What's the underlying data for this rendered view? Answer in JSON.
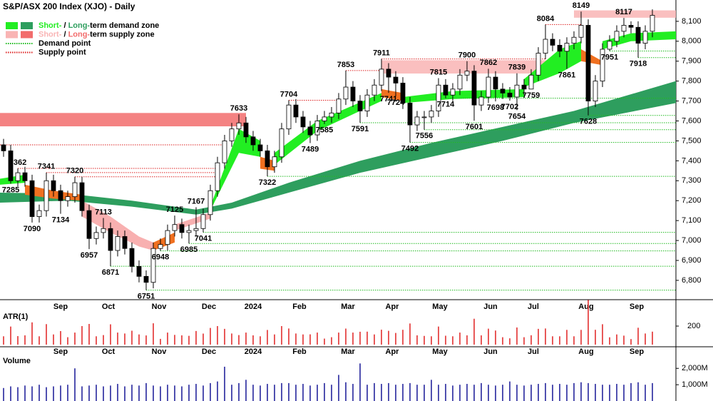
{
  "chart_data": {
    "type": "candlestick",
    "title": "S&P/ASX 200 Index (XJO) - Daily",
    "legend": [
      {
        "short": "Short-",
        "sep": " / ",
        "long": "Long-",
        "text": "term demand zone",
        "short_color": "#22ee22",
        "long_color": "#2e9e5e"
      },
      {
        "short": "Short-",
        "sep": " / ",
        "long": "Long-",
        "text": "term supply zone",
        "short_color": "#f9b4b4",
        "long_color": "#f26c6c"
      },
      {
        "text": "Demand point",
        "color": "#22bb22"
      },
      {
        "text": "Supply point",
        "color": "#dd2222"
      }
    ],
    "xlim": [
      -0.5,
      94.3
    ],
    "xticks": [
      {
        "value": 8,
        "label": "Sep"
      },
      {
        "value": 14.7,
        "label": "Oct"
      },
      {
        "value": 21.8,
        "label": "Nov"
      },
      {
        "value": 28.8,
        "label": "Dec"
      },
      {
        "value": 35,
        "label": "2024"
      },
      {
        "value": 41.5,
        "label": "Feb"
      },
      {
        "value": 48.3,
        "label": "Mar"
      },
      {
        "value": 54.5,
        "label": "Apr"
      },
      {
        "value": 61.2,
        "label": "May"
      },
      {
        "value": 68.3,
        "label": "Jun"
      },
      {
        "value": 74.3,
        "label": "Jul"
      },
      {
        "value": 81.7,
        "label": "Aug"
      },
      {
        "value": 88.8,
        "label": "Sep"
      }
    ],
    "ylim": [
      6703,
      8207
    ],
    "yticks": [
      {
        "value": 6800,
        "label": "6,800"
      },
      {
        "value": 6900,
        "label": "6,900"
      },
      {
        "value": 7000,
        "label": "7,000"
      },
      {
        "value": 7100,
        "label": "7,100"
      },
      {
        "value": 7200,
        "label": "7,200"
      },
      {
        "value": 7300,
        "label": "7,300"
      },
      {
        "value": 7400,
        "label": "7,400"
      },
      {
        "value": 7500,
        "label": "7,500"
      },
      {
        "value": 7600,
        "label": "7,600"
      },
      {
        "value": 7700,
        "label": "7,700"
      },
      {
        "value": 7800,
        "label": "7,800"
      },
      {
        "value": 7900,
        "label": "7,900"
      },
      {
        "value": 8000,
        "label": "8,000"
      },
      {
        "value": 8100,
        "label": "8,100"
      }
    ],
    "open": [
      7480,
      7450,
      7300,
      7340,
      7300,
      7120,
      7150,
      7300,
      7250,
      7200,
      7220,
      7290,
      7150,
      7010,
      7040,
      7060,
      6950,
      7020,
      6960,
      6870,
      6820,
      6790,
      6960,
      6980,
      7050,
      7080,
      7040,
      7050,
      7060,
      7130,
      7250,
      7390,
      7500,
      7560,
      7590,
      7520,
      7480,
      7450,
      7370,
      7420,
      7560,
      7680,
      7620,
      7570,
      7530,
      7600,
      7620,
      7640,
      7710,
      7770,
      7700,
      7650,
      7730,
      7780,
      7860,
      7820,
      7790,
      7690,
      7580,
      7620,
      7620,
      7650,
      7780,
      7730,
      7760,
      7830,
      7850,
      7680,
      7720,
      7820,
      7760,
      7740,
      7720,
      7780,
      7760,
      7830,
      7940,
      8010,
      7980,
      7950,
      7990,
      8020,
      8080,
      7700,
      7800,
      7960,
      8000,
      8050,
      8080,
      8070,
      7990,
      8050
    ],
    "high": [
      7510,
      7480,
      7362,
      7370,
      7330,
      7180,
      7341,
      7330,
      7280,
      7250,
      7320,
      7320,
      7180,
      7070,
      7113,
      7090,
      7050,
      7050,
      6990,
      6900,
      6850,
      6990,
      7010,
      7080,
      7125,
      7110,
      7080,
      7167,
      7160,
      7280,
      7420,
      7530,
      7590,
      7633,
      7620,
      7550,
      7510,
      7480,
      7450,
      7590,
      7704,
      7710,
      7650,
      7600,
      7630,
      7650,
      7670,
      7740,
      7853,
      7800,
      7730,
      7760,
      7810,
      7911,
      7890,
      7850,
      7820,
      7720,
      7650,
      7650,
      7680,
      7815,
      7810,
      7790,
      7860,
      7900,
      7880,
      7750,
      7862,
      7850,
      7790,
      7770,
      7839,
      7810,
      7860,
      7970,
      8084,
      8040,
      8010,
      8020,
      8050,
      8149,
      8110,
      7830,
      7990,
      8030,
      8080,
      8117,
      8100,
      8100,
      8080,
      8160
    ],
    "low": [
      7420,
      7285,
      7270,
      7270,
      7090,
      7090,
      7120,
      7220,
      7134,
      7170,
      7190,
      7120,
      6957,
      6980,
      7010,
      6871,
      6920,
      6930,
      6840,
      6790,
      6751,
      6760,
      6948,
      6950,
      7020,
      7010,
      6985,
      7020,
      7041,
      7100,
      7220,
      7360,
      7470,
      7530,
      7490,
      7450,
      7420,
      7322,
      7340,
      7390,
      7530,
      7590,
      7540,
      7489,
      7500,
      7585,
      7590,
      7610,
      7680,
      7670,
      7591,
      7620,
      7700,
      7750,
      7741,
      7724,
      7660,
      7492,
      7550,
      7556,
      7590,
      7620,
      7714,
      7700,
      7730,
      7800,
      7601,
      7650,
      7690,
      7698,
      7710,
      7702,
      7654,
      7730,
      7759,
      7800,
      7910,
      7950,
      7920,
      7861,
      7960,
      7990,
      7628,
      7670,
      7770,
      7951,
      7970,
      8020,
      8040,
      7918,
      7960,
      8020
    ],
    "close": [
      7450,
      7300,
      7340,
      7300,
      7120,
      7150,
      7300,
      7250,
      7200,
      7220,
      7290,
      7150,
      7010,
      7040,
      7060,
      6950,
      7020,
      6960,
      6870,
      6820,
      6790,
      6960,
      6980,
      7050,
      7080,
      7040,
      7050,
      7060,
      7130,
      7250,
      7390,
      7500,
      7560,
      7590,
      7520,
      7480,
      7450,
      7370,
      7420,
      7560,
      7680,
      7620,
      7570,
      7530,
      7600,
      7620,
      7640,
      7710,
      7770,
      7700,
      7650,
      7730,
      7780,
      7860,
      7820,
      7790,
      7690,
      7580,
      7620,
      7620,
      7650,
      7780,
      7730,
      7760,
      7830,
      7850,
      7680,
      7720,
      7820,
      7760,
      7740,
      7720,
      7780,
      7760,
      7830,
      7940,
      8010,
      7980,
      7950,
      7990,
      8020,
      8080,
      7700,
      7800,
      7960,
      8000,
      8050,
      8080,
      8070,
      7990,
      8050,
      8130
    ],
    "up_color": "#ffffff",
    "down_color": "#000000",
    "high_labels": [
      2,
      6,
      10,
      14,
      24,
      27,
      33,
      40,
      48,
      53,
      61,
      65,
      68,
      72,
      76,
      81,
      87
    ],
    "low_labels": [
      1,
      4,
      8,
      12,
      15,
      20,
      22,
      26,
      28,
      37,
      43,
      45,
      50,
      54,
      55,
      57,
      59,
      62,
      66,
      69,
      71,
      72,
      74,
      79,
      82,
      85,
      89
    ],
    "supply_zones": [
      {
        "from": -0.5,
        "to": 34,
        "low": 7573,
        "high": 7640,
        "color": "#f26c6c"
      },
      {
        "from": 53,
        "to": 77,
        "low": 7838,
        "high": 7905,
        "color": "#f9b4b4"
      },
      {
        "from": 80,
        "to": 94.3,
        "low": 8118,
        "high": 8155,
        "color": "#f9b4b4"
      }
    ],
    "long_band": {
      "color": "#2e9e5e",
      "x": [
        -0.5,
        9,
        18,
        27,
        32,
        40,
        50,
        60,
        70,
        80,
        94.3
      ],
      "lower": [
        7190,
        7200,
        7170,
        7130,
        7160,
        7240,
        7340,
        7420,
        7500,
        7590,
        7690
      ],
      "upper": [
        7240,
        7235,
        7200,
        7155,
        7190,
        7290,
        7400,
        7490,
        7570,
        7650,
        7800
      ]
    },
    "short_band": [
      {
        "color": "#22ee22",
        "x": [
          -0.5,
          3
        ],
        "lower": [
          7280,
          7290
        ],
        "upper": [
          7310,
          7330
        ]
      },
      {
        "color": "#f07020",
        "x": [
          3,
          7,
          11
        ],
        "lower": [
          7230,
          7210,
          7200
        ],
        "upper": [
          7280,
          7250,
          7230
        ]
      },
      {
        "color": "#f8b0b0",
        "x": [
          11,
          15,
          19,
          21
        ],
        "lower": [
          7120,
          7040,
          6970,
          6950
        ],
        "upper": [
          7200,
          7120,
          7020,
          6990
        ]
      },
      {
        "color": "#f07020",
        "x": [
          21,
          24
        ],
        "lower": [
          6950,
          6990
        ],
        "upper": [
          6990,
          7040
        ]
      },
      {
        "color": "#f8b0b0",
        "x": [
          24,
          29
        ],
        "lower": [
          7050,
          7110
        ],
        "upper": [
          7080,
          7140
        ]
      },
      {
        "color": "#22ee22",
        "x": [
          29,
          33,
          36
        ],
        "lower": [
          7150,
          7440,
          7420
        ],
        "upper": [
          7170,
          7560,
          7500
        ]
      },
      {
        "color": "#f07020",
        "x": [
          36,
          38
        ],
        "lower": [
          7360,
          7350
        ],
        "upper": [
          7420,
          7400
        ]
      },
      {
        "color": "#22ee22",
        "x": [
          38,
          44,
          53
        ],
        "lower": [
          7380,
          7550,
          7700
        ],
        "upper": [
          7440,
          7600,
          7740
        ]
      },
      {
        "color": "#f07020",
        "x": [
          53,
          56
        ],
        "lower": [
          7720,
          7700
        ],
        "upper": [
          7760,
          7740
        ]
      },
      {
        "color": "#22ee22",
        "x": [
          56,
          63,
          73
        ],
        "lower": [
          7690,
          7710,
          7720
        ],
        "upper": [
          7720,
          7750,
          7760
        ]
      },
      {
        "color": "#22ee22",
        "x": [
          73,
          78,
          81
        ],
        "lower": [
          7770,
          7840,
          7900
        ],
        "upper": [
          7810,
          7960,
          8000
        ]
      },
      {
        "color": "#f07020",
        "x": [
          81,
          84
        ],
        "lower": [
          7900,
          7880
        ],
        "upper": [
          7960,
          7900
        ]
      },
      {
        "color": "#22ee22",
        "x": [
          84,
          88,
          94.3
        ],
        "lower": [
          7960,
          8000,
          8010
        ],
        "upper": [
          8000,
          8040,
          8050
        ]
      }
    ],
    "demand_points": {
      "color": "#22bb22",
      "levels": [
        6751,
        6871,
        6948,
        6985,
        7041,
        7322,
        7492,
        7556,
        7591,
        7628,
        7714,
        7918,
        7951
      ],
      "from": [
        20,
        15,
        22,
        26,
        28,
        37,
        57,
        59,
        50,
        82,
        62,
        89,
        85
      ]
    },
    "supply_points": {
      "color": "#dd2222",
      "levels": [
        7480,
        7362,
        7341,
        7320,
        7704,
        7853,
        7911,
        8084
      ],
      "from": [
        -0.5,
        2,
        6,
        10,
        40,
        48,
        53,
        76
      ],
      "to": [
        31,
        30,
        30,
        30,
        47,
        53,
        76,
        81
      ]
    },
    "atr": {
      "label": "ATR(1)",
      "color": "#e02020",
      "ylim": [
        0,
        346
      ],
      "yticks": [
        200
      ]
    },
    "volume": {
      "label": "Volume",
      "color": "#5050b0",
      "ylim": [
        -125,
        2708
      ],
      "yticks": [
        {
          "value": 1000,
          "label": "1,000M"
        },
        {
          "value": 2000,
          "label": "2,000M"
        }
      ],
      "values": [
        800,
        900,
        850,
        950,
        900,
        1000,
        850,
        900,
        950,
        1000,
        2000,
        900,
        950,
        1000,
        900,
        950,
        1050,
        900,
        1000,
        950,
        1100,
        950,
        900,
        1000,
        950,
        900,
        1000,
        1050,
        950,
        1100,
        1200,
        2100,
        1000,
        1100,
        1300,
        1000,
        950,
        1050,
        1000,
        1100,
        1100,
        1000,
        1050,
        950,
        1000,
        1100,
        1000,
        1600,
        1150,
        1050,
        2300,
        1000,
        1100,
        1050,
        1100,
        1000,
        1050,
        1100,
        1000,
        1000,
        1300,
        1000,
        1050,
        950,
        1000,
        1050,
        1000,
        1100,
        1000,
        950,
        1000,
        1200,
        1000,
        950,
        1000,
        1050,
        1100,
        1000,
        1050,
        1000,
        1100,
        1150,
        1100,
        1050,
        1000,
        1000,
        1050,
        1000,
        1100,
        1150,
        1000,
        1100
      ]
    }
  }
}
